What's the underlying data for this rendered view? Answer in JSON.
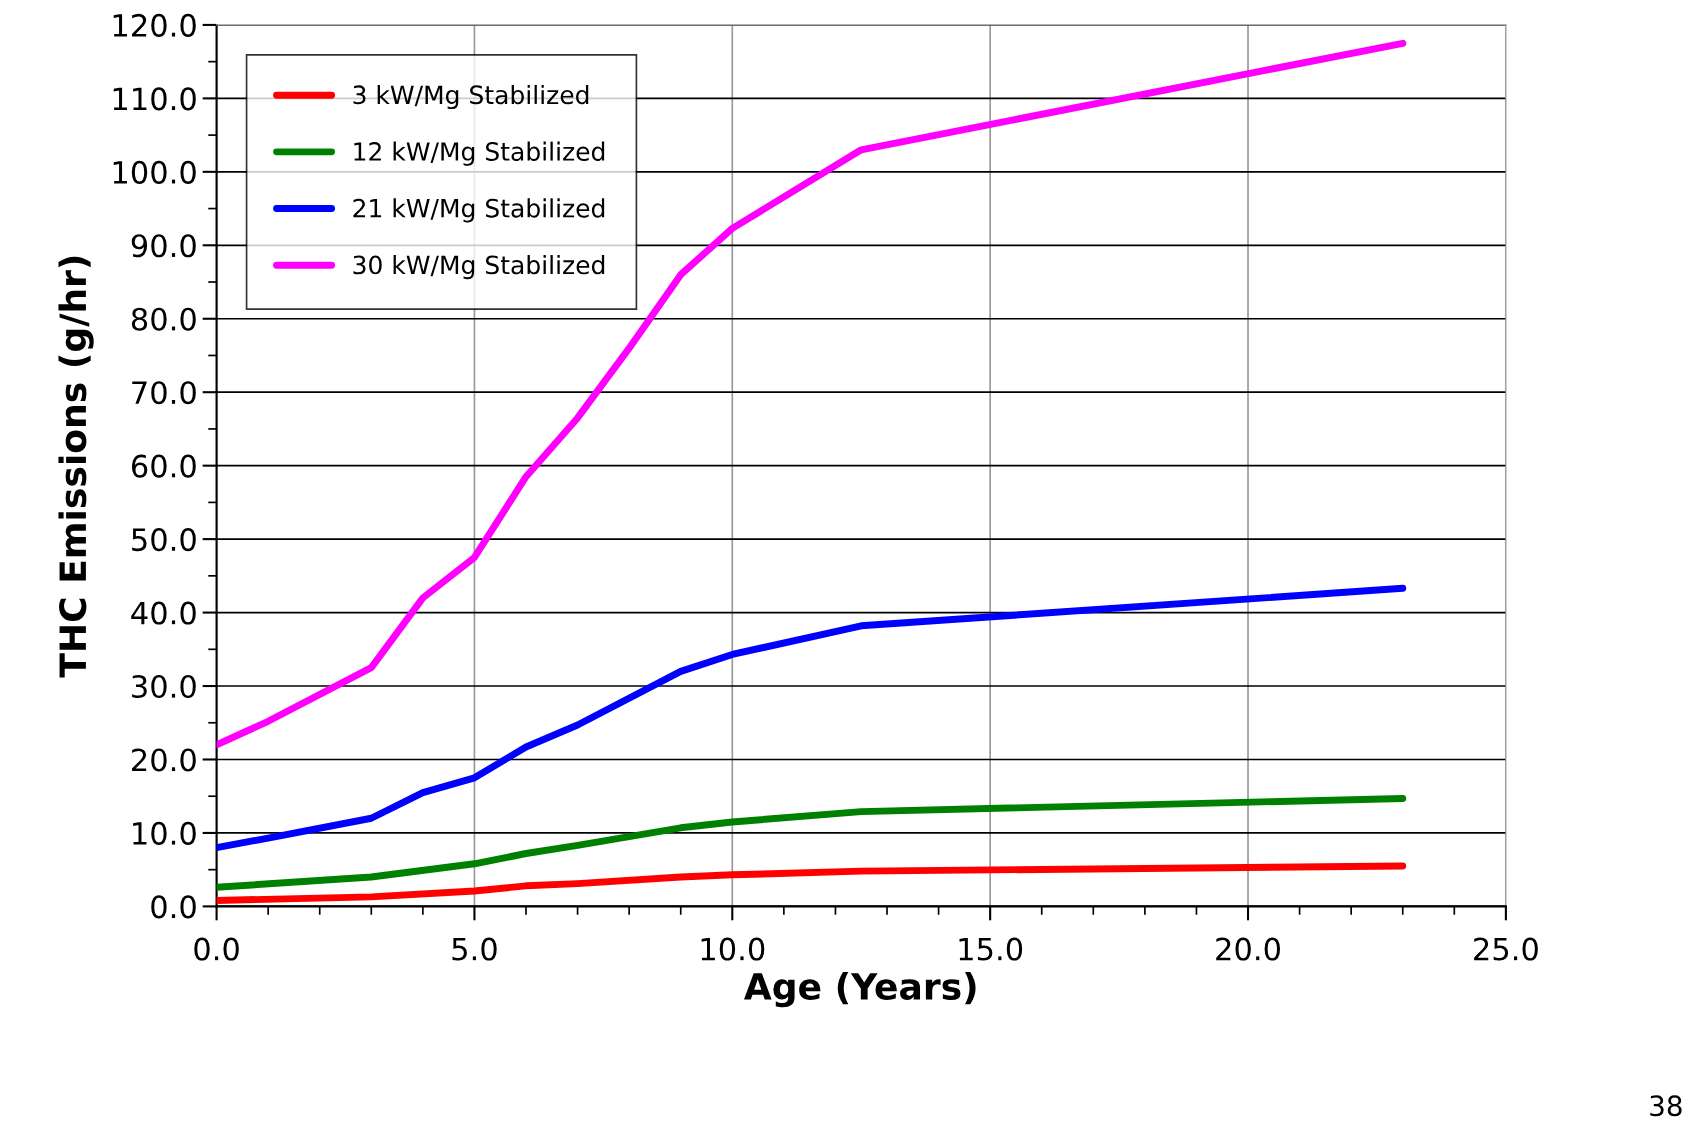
{
  "chart_data": {
    "type": "line",
    "xlabel": "Age (Years)",
    "ylabel": "THC Emissions (g/hr)",
    "xlim": [
      0,
      25
    ],
    "xticks": [
      {
        "value": 0,
        "label": "0.0"
      },
      {
        "value": 5,
        "label": "5.0"
      },
      {
        "value": 10,
        "label": "10.0"
      },
      {
        "value": 15,
        "label": "15.0"
      },
      {
        "value": 20,
        "label": "20.0"
      },
      {
        "value": 25,
        "label": "25.0"
      }
    ],
    "ylim": [
      0,
      120
    ],
    "yticks": [
      {
        "value": 0,
        "label": "0.0"
      },
      {
        "value": 10,
        "label": "10.0"
      },
      {
        "value": 20,
        "label": "20.0"
      },
      {
        "value": 30,
        "label": "30.0"
      },
      {
        "value": 40,
        "label": "40.0"
      },
      {
        "value": 50,
        "label": "50.0"
      },
      {
        "value": 60,
        "label": "60.0"
      },
      {
        "value": 70,
        "label": "70.0"
      },
      {
        "value": 80,
        "label": "80.0"
      },
      {
        "value": 90,
        "label": "90.0"
      },
      {
        "value": 100,
        "label": "100.0"
      },
      {
        "value": 110,
        "label": "110.0"
      },
      {
        "value": 120,
        "label": "120.0"
      }
    ],
    "grid": true,
    "legend": "top left",
    "marker": "none",
    "line_style": "solid",
    "annotations": [
      "38"
    ],
    "series": [
      {
        "name": "3 kW/Mg Stabilized",
        "color": "#ff0000",
        "x": [
          0,
          3,
          5,
          6,
          7,
          9,
          10,
          12.5,
          23
        ],
        "values": [
          0.8,
          1.3,
          2.1,
          2.8,
          3.1,
          4.0,
          4.3,
          4.8,
          5.5
        ]
      },
      {
        "name": "12 kW/Mg Stabilized",
        "color": "#008000",
        "x": [
          0,
          3,
          5,
          6,
          7,
          9,
          10,
          12.5,
          23
        ],
        "values": [
          2.6,
          4.0,
          5.8,
          7.2,
          8.3,
          10.7,
          11.5,
          12.9,
          14.7
        ]
      },
      {
        "name": "21 kW/Mg Stabilized",
        "color": "#0000ff",
        "x": [
          0,
          1,
          3,
          4,
          5,
          6,
          7,
          9,
          10,
          12.5,
          23
        ],
        "values": [
          8,
          9.3,
          12,
          15.5,
          17.5,
          21.7,
          24.7,
          32,
          34.3,
          38.2,
          43.3
        ]
      },
      {
        "name": "30 kW/Mg Stabilized",
        "color": "#ff00ff",
        "x": [
          0,
          1,
          3,
          4,
          5,
          6,
          7,
          8,
          9,
          10,
          12.5,
          23
        ],
        "values": [
          22,
          25.2,
          32.5,
          42,
          47.5,
          58.5,
          66.5,
          76,
          86,
          92.3,
          103,
          117.5
        ]
      }
    ]
  }
}
